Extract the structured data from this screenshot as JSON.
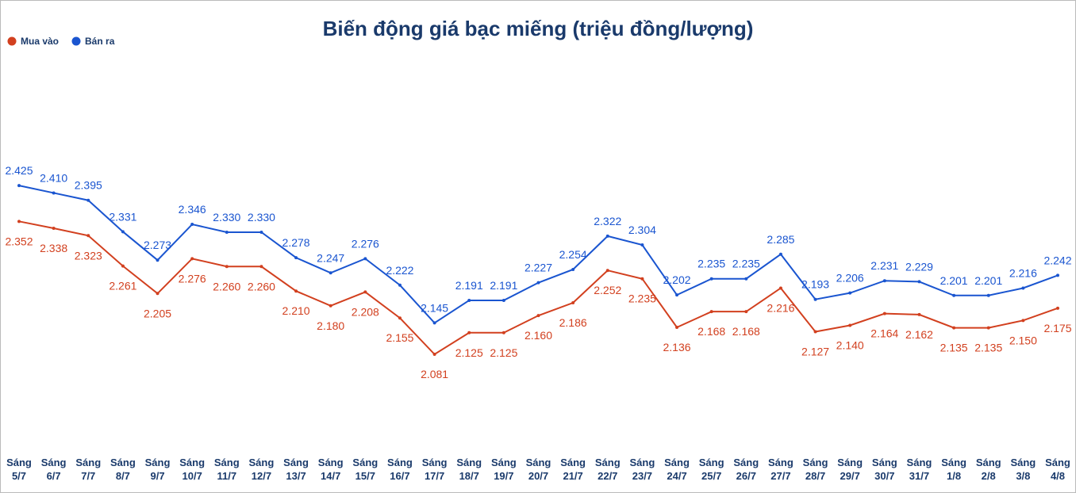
{
  "chart_data": {
    "type": "line",
    "title": "Biến động giá bạc miếng (triệu đồng/lượng)",
    "categories": [
      "Sáng 5/7",
      "Sáng 6/7",
      "Sáng 7/7",
      "Sáng 8/7",
      "Sáng 9/7",
      "Sáng 10/7",
      "Sáng 11/7",
      "Sáng 12/7",
      "Sáng 13/7",
      "Sáng 14/7",
      "Sáng 15/7",
      "Sáng 16/7",
      "Sáng 17/7",
      "Sáng 18/7",
      "Sáng 19/7",
      "Sáng 20/7",
      "Sáng 21/7",
      "Sáng 22/7",
      "Sáng 23/7",
      "Sáng 24/7",
      "Sáng 25/7",
      "Sáng 26/7",
      "Sáng 27/7",
      "Sáng 28/7",
      "Sáng 29/7",
      "Sáng 30/7",
      "Sáng 31/7",
      "Sáng 1/8",
      "Sáng 2/8",
      "Sáng 3/8",
      "Sáng 4/8"
    ],
    "series": [
      {
        "name": "Mua vào",
        "color": "#d2401f",
        "values": [
          2.352,
          2.338,
          2.323,
          2.261,
          2.205,
          2.276,
          2.26,
          2.26,
          2.21,
          2.18,
          2.208,
          2.155,
          2.081,
          2.125,
          2.125,
          2.16,
          2.186,
          2.252,
          2.235,
          2.136,
          2.168,
          2.168,
          2.216,
          2.127,
          2.14,
          2.164,
          2.162,
          2.135,
          2.135,
          2.15,
          2.175
        ],
        "value_labels": [
          "2.352",
          "2.338",
          "2.323",
          "2.261",
          "2.205",
          "2.276",
          "2.260",
          "2.260",
          "2.210",
          "2.180",
          "2.208",
          "2.155",
          "2.081",
          "2.125",
          "2.125",
          "2.160",
          "2.186",
          "2.252",
          "2.235",
          "2.136",
          "2.168",
          "2.168",
          "2.216",
          "2.127",
          "2.140",
          "2.164",
          "2.162",
          "2.135",
          "2.135",
          "2.150",
          "2.175"
        ]
      },
      {
        "name": "Bán ra",
        "color": "#1a55d0",
        "values": [
          2.425,
          2.41,
          2.395,
          2.331,
          2.273,
          2.346,
          2.33,
          2.33,
          2.278,
          2.247,
          2.276,
          2.222,
          2.145,
          2.191,
          2.191,
          2.227,
          2.254,
          2.322,
          2.304,
          2.202,
          2.235,
          2.235,
          2.285,
          2.193,
          2.206,
          2.231,
          2.229,
          2.201,
          2.201,
          2.216,
          2.242
        ],
        "value_labels": [
          "2.425",
          "2.410",
          "2.395",
          "2.331",
          "2.273",
          "2.346",
          "2.330",
          "2.330",
          "2.278",
          "2.247",
          "2.276",
          "2.222",
          "2.145",
          "2.191",
          "2.191",
          "2.227",
          "2.254",
          "2.322",
          "2.304",
          "2.202",
          "2.235",
          "2.235",
          "2.285",
          "2.193",
          "2.206",
          "2.231",
          "2.229",
          "2.201",
          "2.201",
          "2.216",
          "2.242"
        ]
      }
    ],
    "ylim": [
      1.9,
      2.7
    ]
  }
}
